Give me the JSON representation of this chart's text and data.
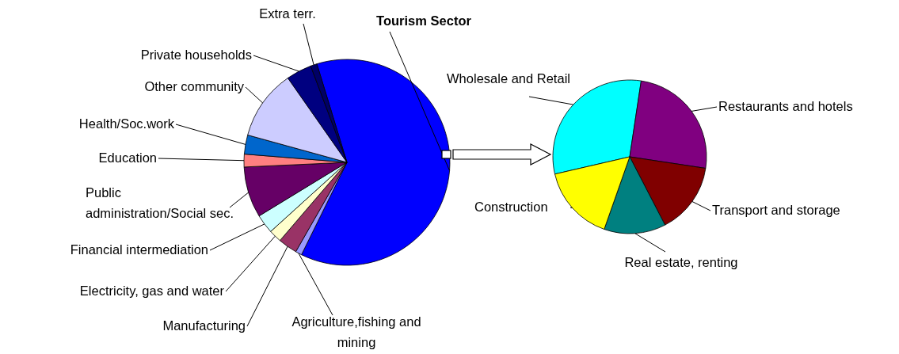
{
  "chart_data": [
    {
      "type": "pie",
      "categories": [
        "Tourism Sector",
        "Agriculture,fishing and mining",
        "Manufacturing",
        "Electricity, gas and water",
        "Financial intermediation",
        "Public administration/Social sec.",
        "Education",
        "Health/Soc.work",
        "Other community",
        "Private households",
        "Extra terr."
      ],
      "values": [
        62,
        1,
        3,
        2,
        3,
        8,
        2,
        3,
        11,
        4,
        1
      ],
      "colors": [
        "#0000ff",
        "#9999ff",
        "#993366",
        "#ffffcc",
        "#ccffff",
        "#660066",
        "#ff8080",
        "#0066cc",
        "#ccccff",
        "#000080",
        "#000066"
      ]
    },
    {
      "type": "pie",
      "categories": [
        "Wholesale and Retail",
        "Restaurants and hotels",
        "Transport and storage",
        "Real estate, renting",
        "Construction"
      ],
      "values": [
        31,
        25,
        15,
        13,
        16
      ],
      "colors": [
        "#00ffff",
        "#800080",
        "#800000",
        "#008080",
        "#ffff00"
      ]
    }
  ]
}
